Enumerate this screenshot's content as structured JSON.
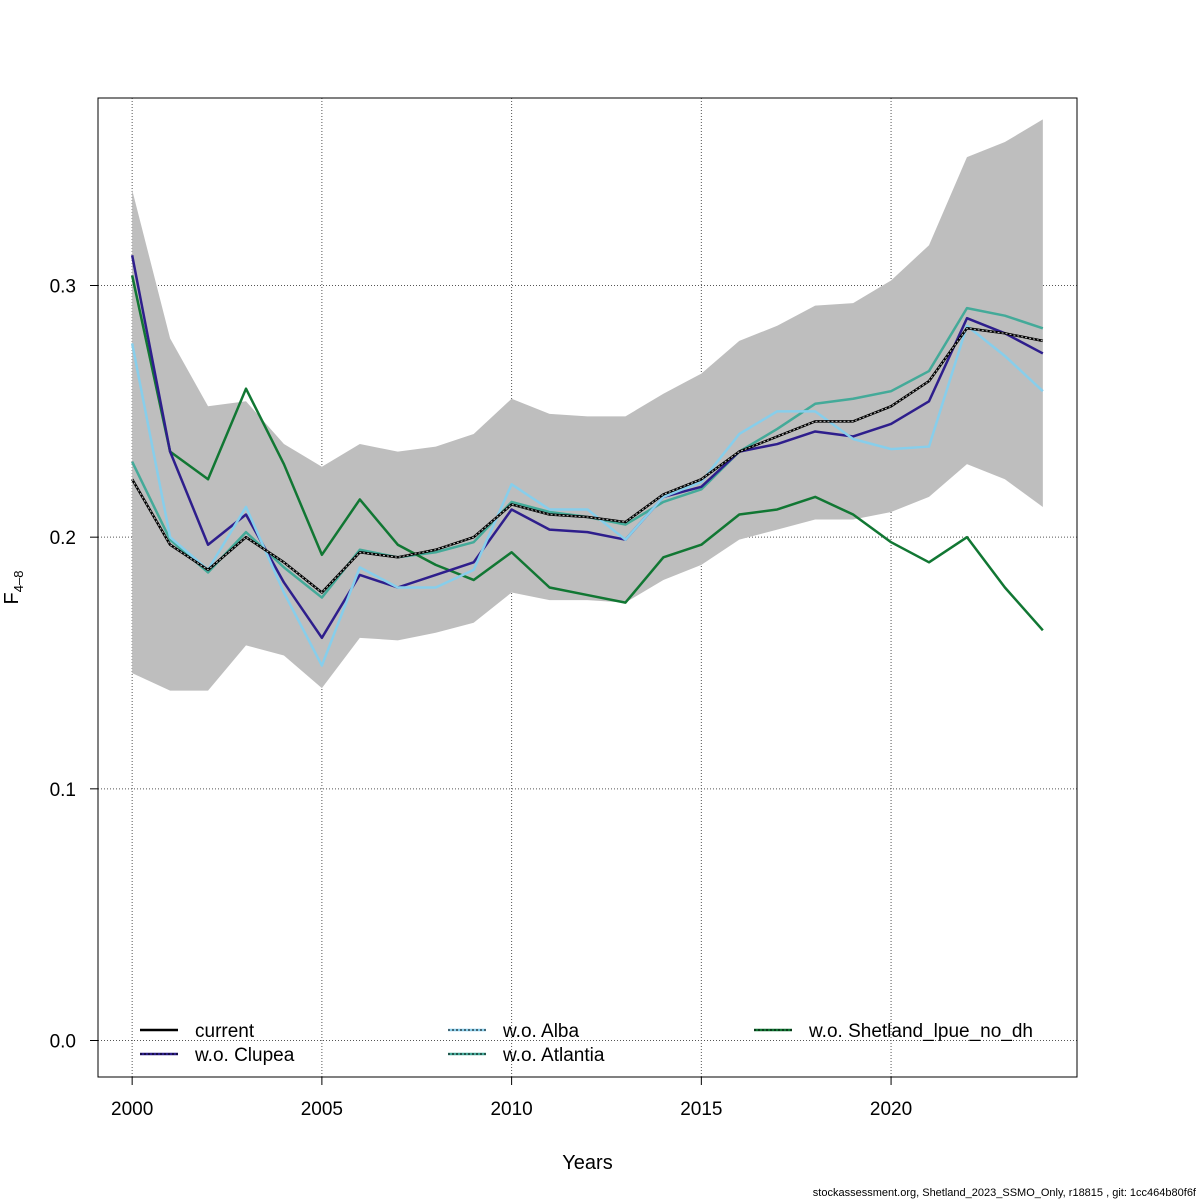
{
  "chart_data": {
    "type": "line",
    "title": "",
    "xlabel": "Years",
    "ylabel": "F",
    "ylabel_subscript": "4–8",
    "xlim": [
      1999.1,
      2024.9
    ],
    "ylim": [
      -0.0145,
      0.3745
    ],
    "x_ticks": [
      2000,
      2005,
      2010,
      2015,
      2020
    ],
    "x_tick_labels": [
      "2000",
      "2005",
      "2010",
      "2015",
      "2020"
    ],
    "y_ticks": [
      0.0,
      0.1,
      0.2,
      0.3
    ],
    "y_tick_labels": [
      "0.0",
      "0.1",
      "0.2",
      "0.3"
    ],
    "grid": true,
    "x": [
      2000,
      2001,
      2002,
      2003,
      2004,
      2005,
      2006,
      2007,
      2008,
      2009,
      2010,
      2011,
      2012,
      2013,
      2014,
      2015,
      2016,
      2017,
      2018,
      2019,
      2020,
      2021,
      2022,
      2023,
      2024
    ],
    "confidence_band": {
      "name": "current CI",
      "color": "#bebebe",
      "upper": [
        0.338,
        0.279,
        0.252,
        0.254,
        0.237,
        0.228,
        0.237,
        0.234,
        0.236,
        0.241,
        0.255,
        0.249,
        0.248,
        0.248,
        0.257,
        0.265,
        0.278,
        0.284,
        0.292,
        0.293,
        0.302,
        0.316,
        0.351,
        0.357,
        0.366
      ],
      "lower": [
        0.146,
        0.139,
        0.139,
        0.157,
        0.153,
        0.14,
        0.16,
        0.159,
        0.162,
        0.166,
        0.178,
        0.175,
        0.175,
        0.174,
        0.183,
        0.189,
        0.199,
        0.203,
        0.207,
        0.207,
        0.21,
        0.216,
        0.229,
        0.223,
        0.212
      ]
    },
    "series": [
      {
        "name": "current",
        "color": "#000000",
        "dashed_overlay": false,
        "values": [
          0.223,
          0.197,
          0.187,
          0.2,
          0.19,
          0.178,
          0.194,
          0.192,
          0.195,
          0.2,
          0.213,
          0.209,
          0.208,
          0.206,
          0.217,
          0.223,
          0.234,
          0.24,
          0.246,
          0.246,
          0.252,
          0.262,
          0.283,
          0.281,
          0.278
        ]
      },
      {
        "name": "w.o. Clupea",
        "color": "#2e1e8c",
        "dashed_overlay": true,
        "values": [
          0.312,
          0.234,
          0.197,
          0.209,
          0.182,
          0.16,
          0.185,
          0.18,
          0.185,
          0.19,
          0.211,
          0.203,
          0.202,
          0.199,
          0.216,
          0.22,
          0.234,
          0.237,
          0.242,
          0.24,
          0.245,
          0.254,
          0.287,
          0.281,
          0.273
        ]
      },
      {
        "name": "w.o. Alba",
        "color": "#87ceeb",
        "dashed_overlay": true,
        "values": [
          0.277,
          0.2,
          0.187,
          0.212,
          0.178,
          0.149,
          0.188,
          0.18,
          0.18,
          0.187,
          0.221,
          0.211,
          0.211,
          0.199,
          0.216,
          0.222,
          0.241,
          0.25,
          0.25,
          0.239,
          0.235,
          0.236,
          0.284,
          0.272,
          0.258
        ]
      },
      {
        "name": "w.o. Atlantia",
        "color": "#44aa99",
        "dashed_overlay": true,
        "values": [
          0.23,
          0.199,
          0.186,
          0.202,
          0.188,
          0.176,
          0.195,
          0.192,
          0.194,
          0.198,
          0.214,
          0.21,
          0.208,
          0.205,
          0.214,
          0.219,
          0.234,
          0.243,
          0.253,
          0.255,
          0.258,
          0.266,
          0.291,
          0.288,
          0.283
        ]
      },
      {
        "name": "w.o. Shetland_lpue_no_dh",
        "color": "#117733",
        "dashed_overlay": true,
        "values": [
          0.304,
          0.234,
          0.223,
          0.259,
          0.229,
          0.193,
          0.215,
          0.197,
          0.189,
          0.183,
          0.194,
          0.18,
          0.177,
          0.174,
          0.192,
          0.197,
          0.209,
          0.211,
          0.216,
          0.209,
          0.198,
          0.19,
          0.2,
          0.18,
          0.163
        ]
      }
    ],
    "current_dashed_line": true,
    "legend": {
      "placement": "bottom",
      "columns": 3,
      "entries": [
        "current",
        "w.o. Clupea",
        "w.o. Alba",
        "w.o. Atlantia",
        "w.o. Shetland_lpue_no_dh"
      ]
    }
  },
  "footer": "stockassessment.org, Shetland_2023_SSMO_Only, r18815 , git: 1cc464b80f6f"
}
